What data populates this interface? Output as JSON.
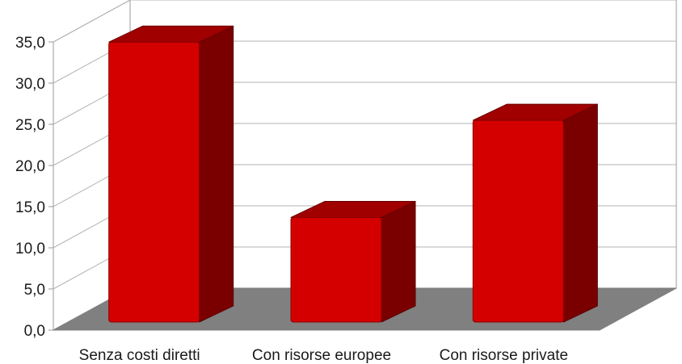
{
  "chart_data": {
    "type": "bar",
    "style": "3d-column",
    "categories": [
      "Senza costi diretti",
      "Con risorse europee",
      "Con risorse private"
    ],
    "values": [
      34.0,
      12.7,
      24.5
    ],
    "ylim": [
      0,
      35
    ],
    "ytick_values": [
      0,
      5,
      10,
      15,
      20,
      25,
      30,
      35
    ],
    "ytick_labels": [
      "0,0",
      "5,0",
      "10,0",
      "15,0",
      "20,0",
      "25,0",
      "30,0",
      "35,0"
    ],
    "grid": true,
    "legend": "none",
    "title": "",
    "xlabel": "",
    "ylabel": "",
    "colors": {
      "bar_front": "#d40000",
      "bar_top": "#a00000",
      "bar_side": "#7a0000",
      "floor": "#808080",
      "grid": "#b3b3b3",
      "axis": "#999999"
    }
  }
}
